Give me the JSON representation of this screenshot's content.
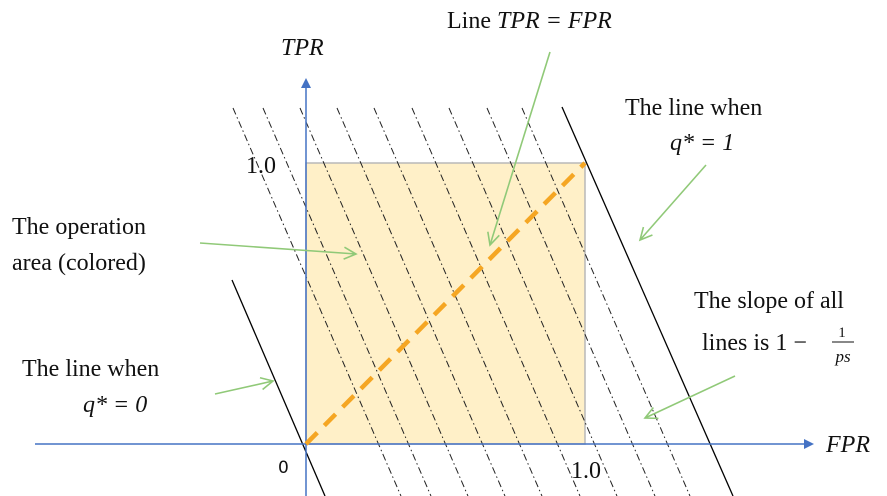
{
  "axes": {
    "y_label": "TPR",
    "x_label": "FPR",
    "origin": "0",
    "y_tick": "1.0",
    "x_tick": "1.0",
    "color": "#4472C4"
  },
  "region": {
    "fill": "#FFF0C8",
    "stroke": "#B8B8B8"
  },
  "diagonal": {
    "color": "#F5A623"
  },
  "annotations": {
    "diagonal_prefix": "Line ",
    "diagonal_formula": "TPR = FPR",
    "q1_line1": "The line when",
    "q1_line2": "q* = 1",
    "area_line1": "The operation",
    "area_line2": "area (colored)",
    "slope_line1": "The slope of all",
    "slope_line2": "lines is 1 −",
    "slope_num": "1",
    "slope_den": "ps",
    "q0_line1": "The line when",
    "q0_line2": "q* = 0",
    "arrow_color": "#90C978"
  }
}
